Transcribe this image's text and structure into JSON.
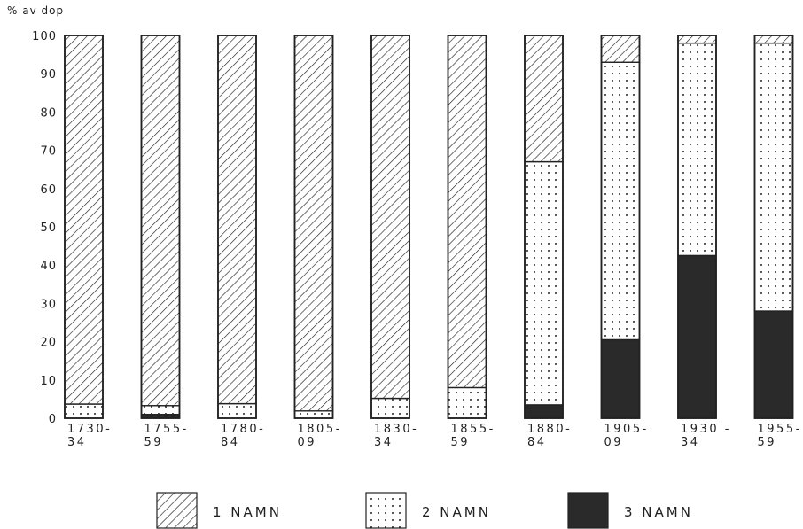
{
  "chart_data": {
    "type": "bar",
    "stacked": true,
    "ylabel": "% av dop",
    "ylim": [
      0,
      100
    ],
    "yticks": [
      0,
      10,
      20,
      30,
      40,
      50,
      60,
      70,
      80,
      90,
      100
    ],
    "categories": [
      [
        "1730-",
        "34"
      ],
      [
        "1755-",
        "59"
      ],
      [
        "1780-",
        "84"
      ],
      [
        "1805-",
        "09"
      ],
      [
        "1830-",
        "34"
      ],
      [
        "1855-",
        "59"
      ],
      [
        "1880-",
        "84"
      ],
      [
        "1905-",
        "09"
      ],
      [
        "1930 -",
        "34"
      ],
      [
        "1955-",
        "59"
      ]
    ],
    "series": [
      {
        "name": "3 NAMN",
        "pattern": "solid",
        "values": [
          0,
          1,
          0,
          0,
          0,
          0,
          3.5,
          20.5,
          42.5,
          28
        ]
      },
      {
        "name": "2 NAMN",
        "pattern": "dots",
        "values": [
          3.7,
          2.3,
          3.8,
          1.9,
          5.2,
          8,
          63.5,
          72.5,
          55.5,
          70
        ]
      },
      {
        "name": "1 NAMN",
        "pattern": "hatch",
        "values": [
          96.3,
          96.7,
          96.2,
          98.1,
          94.8,
          92,
          33,
          7,
          2,
          2
        ]
      }
    ],
    "legend_position": "bottom",
    "grid": false,
    "colors": {
      "ink": "#222222",
      "solid": "#2a2a2a",
      "background": "#ffffff"
    }
  }
}
